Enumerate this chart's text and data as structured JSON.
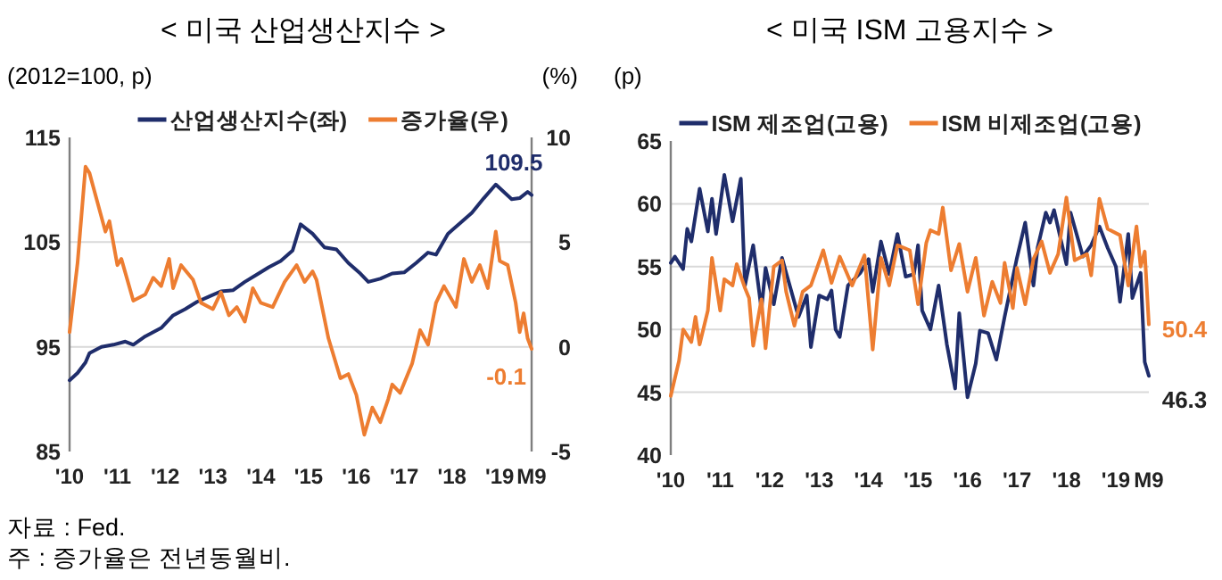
{
  "chart_data": [
    {
      "type": "line",
      "title": "< 미국 산업생산지수 >",
      "ylabel": "(2012=100, p)",
      "y2label": "(%)",
      "legend": "top",
      "grid": "y",
      "xlim": [
        "2010-01",
        "2019-09"
      ],
      "ylim": [
        85,
        115
      ],
      "yticks": [
        85,
        95,
        105,
        115
      ],
      "y2lim": [
        -5,
        10
      ],
      "y2ticks": [
        -5,
        0,
        5,
        10
      ],
      "xticks": [
        {
          "value": "2010-01",
          "label": "'10"
        },
        {
          "value": "2011-01",
          "label": "'11"
        },
        {
          "value": "2012-01",
          "label": "'12"
        },
        {
          "value": "2013-01",
          "label": "'13"
        },
        {
          "value": "2014-01",
          "label": "'14"
        },
        {
          "value": "2015-01",
          "label": "'15"
        },
        {
          "value": "2016-01",
          "label": "'16"
        },
        {
          "value": "2017-01",
          "label": "'17"
        },
        {
          "value": "2018-01",
          "label": "'18"
        },
        {
          "value": "2019-01",
          "label": "'19"
        },
        {
          "value": "2019-09",
          "label": "M9"
        }
      ],
      "series": [
        {
          "name": "산업생산지수(좌)",
          "color": "#1f2d6b",
          "x": [
            "2010-01",
            "2010-03",
            "2010-05",
            "2010-06",
            "2010-09",
            "2010-12",
            "2011-03",
            "2011-05",
            "2011-08",
            "2011-12",
            "2012-03",
            "2012-06",
            "2012-09",
            "2012-12",
            "2013-03",
            "2013-06",
            "2013-09",
            "2013-12",
            "2014-03",
            "2014-06",
            "2014-09",
            "2014-11",
            "2015-02",
            "2015-05",
            "2015-08",
            "2015-11",
            "2016-02",
            "2016-04",
            "2016-07",
            "2016-10",
            "2017-01",
            "2017-04",
            "2017-07",
            "2017-09",
            "2017-12",
            "2018-03",
            "2018-06",
            "2018-09",
            "2018-12",
            "2019-02",
            "2019-04",
            "2019-06",
            "2019-08",
            "2019-09"
          ],
          "values": [
            91.8,
            92.5,
            93.5,
            94.4,
            95.0,
            95.2,
            95.5,
            95.2,
            96.0,
            96.8,
            98.0,
            98.6,
            99.3,
            99.8,
            100.3,
            100.4,
            101.2,
            101.9,
            102.6,
            103.2,
            104.2,
            106.7,
            105.8,
            104.5,
            104.3,
            103.0,
            102.0,
            101.2,
            101.5,
            102.0,
            102.1,
            103.0,
            104.0,
            103.8,
            105.8,
            106.8,
            107.8,
            109.2,
            110.5,
            109.8,
            109.1,
            109.2,
            109.8,
            109.5
          ],
          "value_labels": [
            null,
            null,
            null,
            null,
            null,
            null,
            null,
            null,
            null,
            null,
            null,
            null,
            null,
            null,
            null,
            null,
            null,
            null,
            null,
            null,
            null,
            null,
            null,
            null,
            null,
            null,
            null,
            null,
            null,
            null,
            null,
            null,
            null,
            null,
            null,
            null,
            null,
            null,
            null,
            null,
            null,
            null,
            null,
            "109.5"
          ]
        },
        {
          "name": "증가율(우)",
          "color": "#ed7d31",
          "axis": "y2",
          "x": [
            "2010-01",
            "2010-03",
            "2010-05",
            "2010-06",
            "2010-08",
            "2010-10",
            "2010-11",
            "2011-01",
            "2011-02",
            "2011-05",
            "2011-08",
            "2011-10",
            "2011-12",
            "2012-02",
            "2012-03",
            "2012-05",
            "2012-08",
            "2012-10",
            "2013-01",
            "2013-03",
            "2013-05",
            "2013-07",
            "2013-09",
            "2013-11",
            "2014-01",
            "2014-04",
            "2014-07",
            "2014-10",
            "2014-12",
            "2015-02",
            "2015-03",
            "2015-06",
            "2015-09",
            "2015-11",
            "2016-01",
            "2016-03",
            "2016-05",
            "2016-07",
            "2016-09",
            "2016-10",
            "2016-12",
            "2017-03",
            "2017-05",
            "2017-07",
            "2017-09",
            "2017-11",
            "2018-02",
            "2018-04",
            "2018-06",
            "2018-08",
            "2018-10",
            "2018-12",
            "2019-01",
            "2019-03",
            "2019-05",
            "2019-06",
            "2019-07",
            "2019-08",
            "2019-09"
          ],
          "values": [
            0.7,
            4.0,
            8.6,
            8.3,
            6.9,
            5.5,
            6.0,
            3.9,
            4.2,
            2.2,
            2.5,
            3.3,
            2.9,
            4.2,
            2.8,
            3.9,
            3.2,
            2.1,
            1.8,
            2.6,
            1.5,
            1.9,
            1.2,
            2.8,
            2.1,
            1.9,
            3.1,
            3.9,
            3.1,
            3.6,
            3.2,
            0.4,
            -1.5,
            -1.3,
            -2.3,
            -4.2,
            -2.9,
            -3.6,
            -2.5,
            -1.8,
            -2.2,
            -0.8,
            0.8,
            0.1,
            2.1,
            2.9,
            1.9,
            4.2,
            3.1,
            3.9,
            2.8,
            5.5,
            4.1,
            3.9,
            2.1,
            0.7,
            1.6,
            0.4,
            -0.1
          ],
          "value_labels": [
            null,
            null,
            null,
            null,
            null,
            null,
            null,
            null,
            null,
            null,
            null,
            null,
            null,
            null,
            null,
            null,
            null,
            null,
            null,
            null,
            null,
            null,
            null,
            null,
            null,
            null,
            null,
            null,
            null,
            null,
            null,
            null,
            null,
            null,
            null,
            null,
            null,
            null,
            null,
            null,
            null,
            null,
            null,
            null,
            null,
            null,
            null,
            null,
            null,
            null,
            null,
            null,
            null,
            null,
            null,
            null,
            null,
            null,
            "-0.1"
          ]
        }
      ],
      "annotations": [
        "자료 : Fed.",
        "주 : 증가율은 전년동월비."
      ]
    },
    {
      "type": "line",
      "title": "< 미국 ISM 고용지수 >",
      "ylabel": "(p)",
      "legend": "top",
      "grid": "y",
      "xlim": [
        "2010-01",
        "2019-09"
      ],
      "ylim": [
        40,
        65
      ],
      "yticks": [
        40,
        45,
        50,
        55,
        60,
        65
      ],
      "xticks": [
        {
          "value": "2010-01",
          "label": "'10"
        },
        {
          "value": "2011-01",
          "label": "'11"
        },
        {
          "value": "2012-01",
          "label": "'12"
        },
        {
          "value": "2013-01",
          "label": "'13"
        },
        {
          "value": "2014-01",
          "label": "'14"
        },
        {
          "value": "2015-01",
          "label": "'15"
        },
        {
          "value": "2016-01",
          "label": "'16"
        },
        {
          "value": "2017-01",
          "label": "'17"
        },
        {
          "value": "2018-01",
          "label": "'18"
        },
        {
          "value": "2019-01",
          "label": "'19"
        },
        {
          "value": "2019-09",
          "label": "M9"
        }
      ],
      "series": [
        {
          "name": "ISM 제조업(고용)",
          "color": "#1f2d6b",
          "x": [
            "2010-01",
            "2010-02",
            "2010-04",
            "2010-05",
            "2010-06",
            "2010-08",
            "2010-10",
            "2010-11",
            "2010-12",
            "2011-02",
            "2011-04",
            "2011-06",
            "2011-07",
            "2011-09",
            "2011-11",
            "2011-12",
            "2012-02",
            "2012-04",
            "2012-05",
            "2012-08",
            "2012-10",
            "2012-11",
            "2013-01",
            "2013-03",
            "2013-04",
            "2013-05",
            "2013-06",
            "2013-08",
            "2013-11",
            "2014-01",
            "2014-02",
            "2014-04",
            "2014-06",
            "2014-08",
            "2014-10",
            "2014-12",
            "2015-01",
            "2015-02",
            "2015-04",
            "2015-06",
            "2015-08",
            "2015-10",
            "2015-11",
            "2016-01",
            "2016-03",
            "2016-04",
            "2016-06",
            "2016-08",
            "2016-10",
            "2017-01",
            "2017-03",
            "2017-05",
            "2017-06",
            "2017-08",
            "2017-09",
            "2017-10",
            "2018-01",
            "2018-02",
            "2018-05",
            "2018-07",
            "2018-09",
            "2018-11",
            "2019-01",
            "2019-02",
            "2019-04",
            "2019-05",
            "2019-07",
            "2019-08",
            "2019-09"
          ],
          "values": [
            55.3,
            55.8,
            54.8,
            58.0,
            57.0,
            61.2,
            57.8,
            60.4,
            57.6,
            62.3,
            58.6,
            62.0,
            53.5,
            56.7,
            51.6,
            54.9,
            52.0,
            55.7,
            54.5,
            51.0,
            52.7,
            48.6,
            52.7,
            52.4,
            53.1,
            50.0,
            49.4,
            53.5,
            54.5,
            55.6,
            53.0,
            57.0,
            54.4,
            57.6,
            54.2,
            54.4,
            56.7,
            51.5,
            50.0,
            53.5,
            48.8,
            45.3,
            51.3,
            44.6,
            47.3,
            49.9,
            49.7,
            47.6,
            51.0,
            55.7,
            58.5,
            53.5,
            56.5,
            59.3,
            58.5,
            59.5,
            55.2,
            59.3,
            55.8,
            56.7,
            58.2,
            56.5,
            55.0,
            52.2,
            57.6,
            52.5,
            54.5,
            47.4,
            46.3
          ],
          "value_labels": [
            null,
            null,
            null,
            null,
            null,
            null,
            null,
            null,
            null,
            null,
            null,
            null,
            null,
            null,
            null,
            null,
            null,
            null,
            null,
            null,
            null,
            null,
            null,
            null,
            null,
            null,
            null,
            null,
            null,
            null,
            null,
            null,
            null,
            null,
            null,
            null,
            null,
            null,
            null,
            null,
            null,
            null,
            null,
            null,
            null,
            null,
            null,
            null,
            null,
            null,
            null,
            null,
            null,
            null,
            null,
            null,
            null,
            null,
            null,
            null,
            null,
            null,
            null,
            null,
            null,
            null,
            null,
            null,
            "46.3"
          ]
        },
        {
          "name": "ISM 비제조업(고용)",
          "color": "#ed7d31",
          "x": [
            "2010-01",
            "2010-03",
            "2010-04",
            "2010-06",
            "2010-07",
            "2010-08",
            "2010-10",
            "2010-11",
            "2011-01",
            "2011-02",
            "2011-04",
            "2011-05",
            "2011-07",
            "2011-08",
            "2011-09",
            "2011-11",
            "2011-12",
            "2012-02",
            "2012-04",
            "2012-05",
            "2012-07",
            "2012-09",
            "2012-11",
            "2013-02",
            "2013-04",
            "2013-06",
            "2013-09",
            "2013-12",
            "2014-02",
            "2014-04",
            "2014-06",
            "2014-08",
            "2014-11",
            "2015-01",
            "2015-03",
            "2015-04",
            "2015-06",
            "2015-07",
            "2015-09",
            "2015-11",
            "2016-01",
            "2016-03",
            "2016-05",
            "2016-07",
            "2016-09",
            "2016-10",
            "2016-12",
            "2017-01",
            "2017-03",
            "2017-05",
            "2017-07",
            "2017-09",
            "2017-11",
            "2018-01",
            "2018-03",
            "2018-06",
            "2018-07",
            "2018-09",
            "2018-11",
            "2019-02",
            "2019-04",
            "2019-06",
            "2019-07",
            "2019-08",
            "2019-09"
          ],
          "values": [
            44.7,
            47.5,
            50.0,
            49.0,
            51.0,
            48.8,
            51.5,
            55.7,
            51.5,
            54.0,
            53.5,
            55.2,
            53.3,
            52.5,
            48.7,
            52.4,
            48.5,
            55.0,
            55.5,
            53.0,
            50.3,
            53.0,
            53.5,
            56.3,
            53.7,
            55.8,
            53.5,
            55.9,
            48.4,
            55.7,
            53.5,
            56.7,
            56.3,
            52.0,
            56.9,
            57.9,
            57.6,
            59.7,
            54.7,
            56.8,
            53.0,
            55.7,
            51.1,
            53.8,
            52.1,
            55.3,
            51.7,
            54.9,
            52.0,
            55.6,
            57.0,
            54.5,
            56.0,
            60.5,
            55.5,
            56.0,
            54.3,
            60.4,
            58.0,
            57.5,
            53.5,
            58.2,
            55.0,
            56.2,
            50.4
          ],
          "value_labels": [
            null,
            null,
            null,
            null,
            null,
            null,
            null,
            null,
            null,
            null,
            null,
            null,
            null,
            null,
            null,
            null,
            null,
            null,
            null,
            null,
            null,
            null,
            null,
            null,
            null,
            null,
            null,
            null,
            null,
            null,
            null,
            null,
            null,
            null,
            null,
            null,
            null,
            null,
            null,
            null,
            null,
            null,
            null,
            null,
            null,
            null,
            null,
            null,
            null,
            null,
            null,
            null,
            null,
            null,
            null,
            null,
            null,
            null,
            null,
            null,
            null,
            null,
            null,
            null,
            "50.4"
          ]
        }
      ]
    }
  ]
}
